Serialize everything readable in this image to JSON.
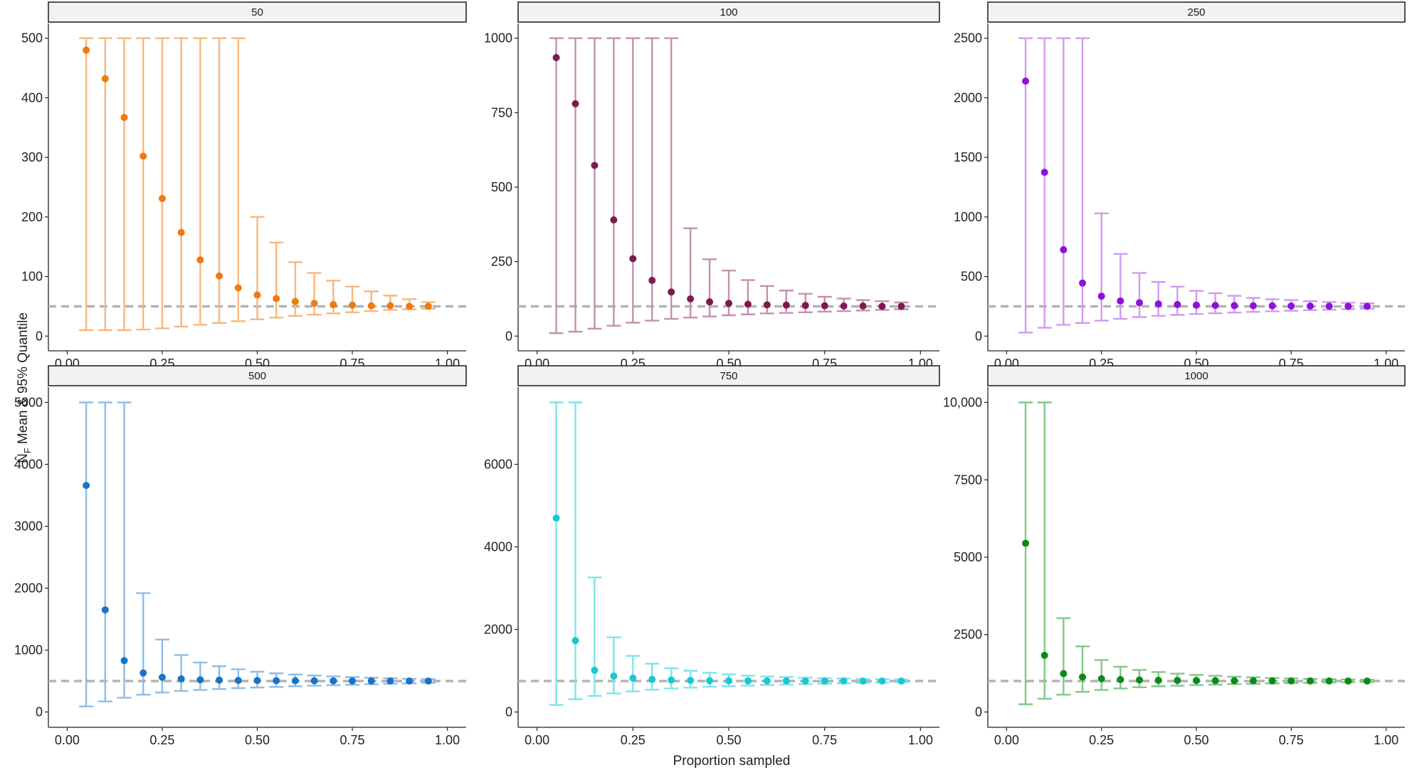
{
  "figure": {
    "xlabel": "Proportion sampled",
    "ylabel_sub": "F",
    "ylabel_text": "Mean & 95% Quantile",
    "ylabel_symbol": "N̂"
  },
  "chart_data": [
    {
      "type": "scatter",
      "panel_title": "50",
      "true_value": 50,
      "color": "#ee7a12",
      "bar_color": "#f7b77c",
      "xlim": [
        0,
        1
      ],
      "ylim": [
        0,
        500
      ],
      "xticks": [
        0.0,
        0.25,
        0.5,
        0.75,
        1.0
      ],
      "xtick_labels": [
        "0.00",
        "0.25",
        "0.50",
        "0.75",
        "1.00"
      ],
      "yticks": [
        0,
        100,
        200,
        300,
        400,
        500
      ],
      "ytick_labels": [
        "0",
        "100",
        "200",
        "300",
        "400",
        "500"
      ],
      "x": [
        0.05,
        0.1,
        0.15,
        0.2,
        0.25,
        0.3,
        0.35,
        0.4,
        0.45,
        0.5,
        0.55,
        0.6,
        0.65,
        0.7,
        0.75,
        0.8,
        0.85,
        0.9,
        0.95
      ],
      "mean": [
        480,
        432,
        367,
        302,
        231,
        174,
        128,
        101,
        81,
        69,
        63,
        58,
        55,
        53,
        52,
        51,
        51,
        50,
        50
      ],
      "lower": [
        10,
        10,
        10,
        11,
        13,
        16,
        19,
        22,
        25,
        28,
        31,
        34,
        36,
        38,
        40,
        42,
        44,
        45,
        46
      ],
      "upper": [
        500,
        500,
        500,
        500,
        500,
        500,
        500,
        500,
        500,
        200,
        157,
        124,
        106,
        93,
        83,
        75,
        68,
        62,
        57
      ]
    },
    {
      "type": "scatter",
      "panel_title": "100",
      "true_value": 100,
      "color": "#7f1a50",
      "bar_color": "#c490ad",
      "xlim": [
        0,
        1
      ],
      "ylim": [
        0,
        1000
      ],
      "xticks": [
        0.0,
        0.25,
        0.5,
        0.75,
        1.0
      ],
      "xtick_labels": [
        "0.00",
        "0.25",
        "0.50",
        "0.75",
        "1.00"
      ],
      "yticks": [
        0,
        250,
        500,
        750,
        1000
      ],
      "ytick_labels": [
        "0",
        "250",
        "500",
        "750",
        "1000"
      ],
      "x": [
        0.05,
        0.1,
        0.15,
        0.2,
        0.25,
        0.3,
        0.35,
        0.4,
        0.45,
        0.5,
        0.55,
        0.6,
        0.65,
        0.7,
        0.75,
        0.8,
        0.85,
        0.9,
        0.95
      ],
      "mean": [
        935,
        780,
        573,
        390,
        260,
        187,
        148,
        125,
        115,
        110,
        107,
        105,
        104,
        103,
        102,
        101,
        101,
        100,
        100
      ],
      "lower": [
        10,
        15,
        25,
        35,
        45,
        52,
        58,
        62,
        66,
        70,
        73,
        76,
        78,
        80,
        82,
        84,
        86,
        88,
        90
      ],
      "upper": [
        1000,
        1000,
        1000,
        1000,
        1000,
        1000,
        1000,
        362,
        258,
        220,
        188,
        168,
        153,
        142,
        132,
        126,
        121,
        117,
        113
      ]
    },
    {
      "type": "scatter",
      "panel_title": "250",
      "true_value": 250,
      "color": "#8f10d8",
      "bar_color": "#d299f0",
      "xlim": [
        0,
        1
      ],
      "ylim": [
        0,
        2500
      ],
      "xticks": [
        0.0,
        0.25,
        0.5,
        0.75,
        1.0
      ],
      "xtick_labels": [
        "0.00",
        "0.25",
        "0.50",
        "0.75",
        "1.00"
      ],
      "yticks": [
        0,
        500,
        1000,
        1500,
        2000,
        2500
      ],
      "ytick_labels": [
        "0",
        "500",
        "1000",
        "1500",
        "2000",
        "2500"
      ],
      "x": [
        0.05,
        0.1,
        0.15,
        0.2,
        0.25,
        0.3,
        0.35,
        0.4,
        0.45,
        0.5,
        0.55,
        0.6,
        0.65,
        0.7,
        0.75,
        0.8,
        0.85,
        0.9,
        0.95
      ],
      "mean": [
        2140,
        1375,
        725,
        445,
        335,
        295,
        280,
        270,
        265,
        260,
        258,
        256,
        255,
        254,
        253,
        252,
        251,
        250,
        250
      ],
      "lower": [
        30,
        70,
        95,
        110,
        130,
        145,
        160,
        170,
        178,
        185,
        192,
        198,
        203,
        208,
        213,
        218,
        222,
        226,
        230
      ],
      "upper": [
        2500,
        2500,
        2500,
        2500,
        1030,
        690,
        530,
        455,
        415,
        380,
        360,
        338,
        320,
        310,
        302,
        293,
        286,
        280,
        275
      ]
    },
    {
      "type": "scatter",
      "panel_title": "500",
      "true_value": 500,
      "color": "#1a72c9",
      "bar_color": "#8dbde8",
      "xlim": [
        0,
        1
      ],
      "ylim": [
        0,
        5000
      ],
      "xticks": [
        0.0,
        0.25,
        0.5,
        0.75,
        1.0
      ],
      "xtick_labels": [
        "0.00",
        "0.25",
        "0.50",
        "0.75",
        "1.00"
      ],
      "yticks": [
        0,
        1000,
        2000,
        3000,
        4000,
        5000
      ],
      "ytick_labels": [
        "0",
        "1000",
        "2000",
        "3000",
        "4000",
        "5000"
      ],
      "x": [
        0.05,
        0.1,
        0.15,
        0.2,
        0.25,
        0.3,
        0.35,
        0.4,
        0.45,
        0.5,
        0.55,
        0.6,
        0.65,
        0.7,
        0.75,
        0.8,
        0.85,
        0.9,
        0.95
      ],
      "mean": [
        3660,
        1650,
        830,
        630,
        560,
        535,
        520,
        515,
        510,
        508,
        506,
        505,
        504,
        503,
        502,
        501,
        501,
        500,
        500
      ],
      "lower": [
        90,
        170,
        230,
        280,
        315,
        340,
        355,
        370,
        385,
        395,
        405,
        415,
        425,
        432,
        440,
        448,
        456,
        462,
        470
      ],
      "upper": [
        5000,
        5000,
        5000,
        1920,
        1170,
        920,
        800,
        740,
        690,
        650,
        625,
        605,
        590,
        575,
        563,
        553,
        545,
        537,
        530
      ]
    },
    {
      "type": "scatter",
      "panel_title": "750",
      "true_value": 750,
      "color": "#18c8d2",
      "bar_color": "#7fe4ea",
      "xlim": [
        0,
        1
      ],
      "ylim": [
        0,
        7500
      ],
      "xticks": [
        0.0,
        0.25,
        0.5,
        0.75,
        1.0
      ],
      "xtick_labels": [
        "0.00",
        "0.25",
        "0.50",
        "0.75",
        "1.00"
      ],
      "yticks": [
        0,
        2000,
        4000,
        6000
      ],
      "ytick_labels": [
        "0",
        "2000",
        "4000",
        "6000"
      ],
      "x": [
        0.05,
        0.1,
        0.15,
        0.2,
        0.25,
        0.3,
        0.35,
        0.4,
        0.45,
        0.5,
        0.55,
        0.6,
        0.65,
        0.7,
        0.75,
        0.8,
        0.85,
        0.9,
        0.95
      ],
      "mean": [
        4700,
        1730,
        1010,
        870,
        820,
        790,
        775,
        765,
        760,
        757,
        755,
        754,
        753,
        752,
        751,
        751,
        750,
        750,
        750
      ],
      "lower": [
        170,
        310,
        390,
        450,
        500,
        540,
        570,
        590,
        610,
        625,
        640,
        655,
        665,
        675,
        685,
        695,
        705,
        712,
        720
      ],
      "upper": [
        7500,
        7500,
        3260,
        1810,
        1360,
        1170,
        1060,
        1000,
        950,
        910,
        880,
        860,
        845,
        830,
        820,
        810,
        800,
        795,
        790
      ]
    },
    {
      "type": "scatter",
      "panel_title": "1000",
      "true_value": 1000,
      "color": "#0c8a19",
      "bar_color": "#80c887",
      "xlim": [
        0,
        1
      ],
      "ylim": [
        0,
        10000
      ],
      "xticks": [
        0.0,
        0.25,
        0.5,
        0.75,
        1.0
      ],
      "xtick_labels": [
        "0.00",
        "0.25",
        "0.50",
        "0.75",
        "1.00"
      ],
      "yticks": [
        0,
        2500,
        5000,
        7500,
        10000
      ],
      "ytick_labels": [
        "0",
        "2500",
        "5000",
        "7500",
        "10,000"
      ],
      "x": [
        0.05,
        0.1,
        0.15,
        0.2,
        0.25,
        0.3,
        0.35,
        0.4,
        0.45,
        0.5,
        0.55,
        0.6,
        0.65,
        0.7,
        0.75,
        0.8,
        0.85,
        0.9,
        0.95
      ],
      "mean": [
        5450,
        1830,
        1240,
        1130,
        1075,
        1050,
        1035,
        1025,
        1020,
        1015,
        1012,
        1010,
        1008,
        1006,
        1005,
        1003,
        1002,
        1001,
        1000
      ],
      "lower": [
        250,
        430,
        560,
        650,
        710,
        760,
        800,
        830,
        850,
        870,
        885,
        900,
        912,
        922,
        932,
        942,
        952,
        960,
        968
      ],
      "upper": [
        10000,
        10000,
        3030,
        2120,
        1680,
        1460,
        1360,
        1290,
        1240,
        1200,
        1170,
        1140,
        1120,
        1100,
        1085,
        1070,
        1060,
        1050,
        1040
      ]
    }
  ]
}
